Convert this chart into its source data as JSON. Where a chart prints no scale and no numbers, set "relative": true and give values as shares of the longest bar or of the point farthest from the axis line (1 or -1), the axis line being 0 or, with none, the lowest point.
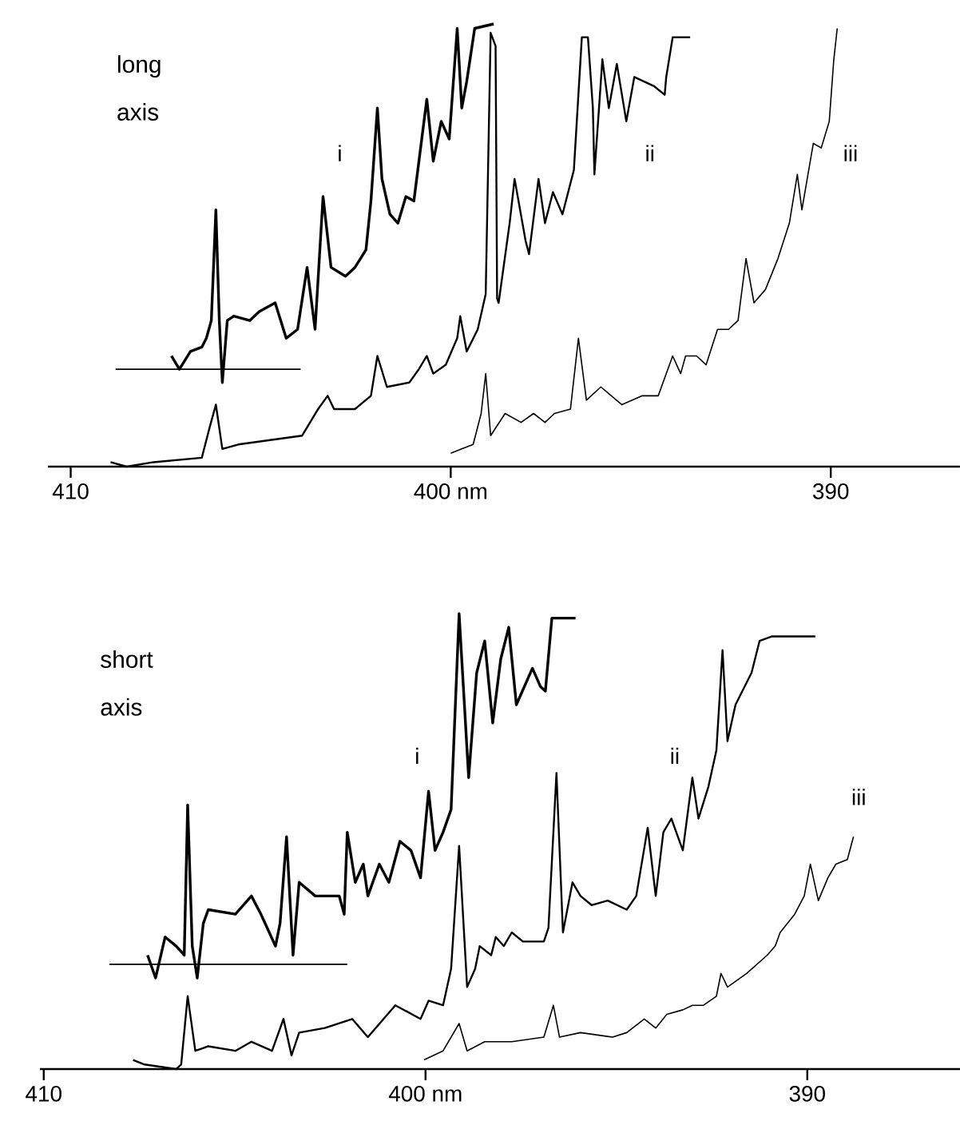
{
  "chart_data": [
    {
      "type": "line",
      "relative": true,
      "xlim": [
        410.6,
        386.6
      ],
      "xticks": [
        410,
        {
          "value": 400,
          "label": "400 nm"
        },
        390
      ],
      "annotations": [
        "long axis"
      ],
      "series": [
        {
          "name": "i",
          "color": "#000000",
          "x": [
            407.35,
            407.14,
            406.85,
            406.55,
            406.43,
            406.3,
            406.18,
            406.09,
            406.01,
            405.88,
            405.71,
            405.29,
            405.04,
            404.62,
            404.33,
            404.03,
            403.78,
            403.57,
            403.36,
            403.15,
            402.77,
            402.52,
            402.23,
            402.1,
            401.93,
            401.81,
            401.6,
            401.39,
            401.18,
            400.97,
            400.63,
            400.46,
            400.25,
            400.04,
            399.83,
            399.71,
            399.58,
            399.37,
            398.87
          ],
          "values": [
            0.25,
            0.22,
            0.26,
            0.27,
            0.29,
            0.33,
            0.58,
            0.33,
            0.19,
            0.33,
            0.34,
            0.33,
            0.35,
            0.37,
            0.29,
            0.31,
            0.45,
            0.31,
            0.61,
            0.45,
            0.43,
            0.45,
            0.49,
            0.6,
            0.81,
            0.65,
            0.57,
            0.55,
            0.61,
            0.6,
            0.83,
            0.69,
            0.78,
            0.74,
            0.99,
            0.81,
            0.87,
            0.99,
            1.0
          ]
        },
        {
          "color": "#000000",
          "x": [
            408.82,
            403.95
          ],
          "values": [
            0.22,
            0.22
          ]
        },
        {
          "name": "ii",
          "color": "#000000",
          "x": [
            408.95,
            408.53,
            407.82,
            406.55,
            406.34,
            406.18,
            406.01,
            405.59,
            404.75,
            403.91,
            403.7,
            403.49,
            403.24,
            403.07,
            402.52,
            402.1,
            401.93,
            401.68,
            401.09,
            400.84,
            400.63,
            400.46,
            400.13,
            399.83,
            399.75,
            399.58,
            399.29,
            399.08,
            398.95,
            398.82,
            398.78,
            398.74,
            398.45,
            398.32,
            398.03,
            397.94,
            397.69,
            397.52,
            397.31,
            397.06,
            396.76,
            396.55,
            396.39,
            396.26,
            396.22,
            396.01,
            395.84,
            395.63,
            395.38,
            395.17,
            394.66,
            394.37,
            394.33,
            394.16,
            393.7
          ],
          "values": [
            0.01,
            0.0,
            0.01,
            0.02,
            0.09,
            0.14,
            0.04,
            0.05,
            0.06,
            0.07,
            0.1,
            0.13,
            0.16,
            0.13,
            0.13,
            0.16,
            0.25,
            0.18,
            0.19,
            0.22,
            0.25,
            0.21,
            0.23,
            0.29,
            0.34,
            0.26,
            0.31,
            0.39,
            0.98,
            0.95,
            0.38,
            0.37,
            0.55,
            0.65,
            0.51,
            0.48,
            0.65,
            0.55,
            0.62,
            0.57,
            0.67,
            0.97,
            0.97,
            0.81,
            0.66,
            0.92,
            0.81,
            0.91,
            0.78,
            0.88,
            0.86,
            0.84,
            0.88,
            0.97,
            0.97
          ]
        },
        {
          "name": "iii",
          "color": "#000000",
          "x": [
            400.0,
            399.71,
            399.41,
            399.2,
            399.08,
            398.95,
            398.57,
            398.15,
            397.82,
            397.52,
            397.27,
            396.85,
            396.64,
            396.43,
            396.05,
            395.5,
            394.96,
            394.54,
            394.16,
            393.95,
            393.82,
            393.53,
            393.28,
            392.98,
            392.69,
            392.44,
            392.23,
            392.02,
            391.72,
            391.39,
            391.09,
            390.88,
            390.76,
            390.46,
            390.25,
            390.04,
            389.92,
            389.83
          ],
          "values": [
            0.03,
            0.04,
            0.05,
            0.12,
            0.21,
            0.07,
            0.12,
            0.1,
            0.12,
            0.1,
            0.12,
            0.13,
            0.29,
            0.15,
            0.18,
            0.14,
            0.16,
            0.16,
            0.25,
            0.21,
            0.25,
            0.25,
            0.23,
            0.31,
            0.31,
            0.33,
            0.47,
            0.37,
            0.4,
            0.47,
            0.55,
            0.66,
            0.58,
            0.73,
            0.72,
            0.78,
            0.92,
            0.99
          ]
        }
      ]
    },
    {
      "type": "line",
      "relative": true,
      "xlim": [
        410.1,
        386.0
      ],
      "xticks": [
        410,
        {
          "value": 400,
          "label": "400 nm"
        },
        390
      ],
      "annotations": [
        "short axis"
      ],
      "series": [
        {
          "name": "i",
          "color": "#000000",
          "x": [
            407.28,
            407.07,
            406.82,
            406.53,
            406.32,
            406.23,
            406.11,
            405.98,
            405.82,
            405.69,
            404.98,
            404.56,
            404.31,
            403.93,
            403.81,
            403.64,
            403.47,
            403.31,
            402.89,
            402.26,
            402.13,
            402.05,
            401.84,
            401.63,
            401.51,
            401.21,
            400.96,
            400.67,
            400.38,
            400.13,
            399.92,
            399.75,
            399.54,
            399.33,
            399.12,
            398.87,
            398.66,
            398.45,
            398.24,
            398.03,
            397.82,
            397.62,
            397.2,
            396.99,
            396.86,
            396.69,
            396.07
          ],
          "values": [
            0.25,
            0.2,
            0.29,
            0.27,
            0.25,
            0.58,
            0.27,
            0.2,
            0.32,
            0.35,
            0.34,
            0.38,
            0.34,
            0.27,
            0.32,
            0.51,
            0.25,
            0.41,
            0.38,
            0.38,
            0.34,
            0.52,
            0.41,
            0.45,
            0.38,
            0.45,
            0.41,
            0.5,
            0.48,
            0.42,
            0.61,
            0.48,
            0.52,
            0.57,
            1.0,
            0.64,
            0.87,
            0.94,
            0.76,
            0.9,
            0.97,
            0.8,
            0.88,
            0.84,
            0.83,
            0.99,
            0.99
          ]
        },
        {
          "color": "#000000",
          "x": [
            408.28,
            402.05
          ],
          "values": [
            0.23,
            0.23
          ]
        },
        {
          "name": "ii",
          "color": "#000000",
          "x": [
            407.66,
            407.36,
            406.53,
            406.4,
            406.23,
            406.03,
            405.69,
            404.98,
            404.56,
            404.02,
            403.72,
            403.51,
            403.31,
            402.64,
            401.92,
            401.51,
            400.79,
            400.13,
            399.92,
            399.54,
            399.33,
            399.12,
            398.91,
            398.7,
            398.58,
            398.28,
            398.16,
            397.95,
            397.74,
            397.45,
            396.9,
            396.78,
            396.57,
            396.4,
            396.15,
            395.94,
            395.65,
            395.23,
            394.73,
            394.48,
            394.18,
            393.97,
            393.77,
            393.56,
            393.26,
            393.01,
            392.85,
            392.59,
            392.38,
            392.22,
            392.09,
            391.88,
            391.46,
            391.25,
            390.92,
            389.79
          ],
          "values": [
            0.02,
            0.01,
            0.0,
            0.01,
            0.16,
            0.04,
            0.05,
            0.04,
            0.06,
            0.04,
            0.11,
            0.03,
            0.08,
            0.09,
            0.11,
            0.07,
            0.14,
            0.11,
            0.15,
            0.14,
            0.22,
            0.49,
            0.18,
            0.22,
            0.27,
            0.25,
            0.29,
            0.27,
            0.3,
            0.28,
            0.28,
            0.31,
            0.65,
            0.3,
            0.41,
            0.38,
            0.36,
            0.37,
            0.35,
            0.38,
            0.53,
            0.38,
            0.52,
            0.55,
            0.48,
            0.64,
            0.55,
            0.62,
            0.7,
            0.92,
            0.72,
            0.8,
            0.87,
            0.94,
            0.95,
            0.95
          ]
        },
        {
          "name": "iii",
          "color": "#000000",
          "x": [
            400.04,
            399.54,
            399.12,
            398.91,
            398.45,
            397.74,
            396.9,
            396.65,
            396.49,
            395.94,
            395.1,
            394.73,
            394.27,
            393.97,
            393.68,
            393.26,
            393.01,
            392.72,
            392.38,
            392.26,
            392.09,
            391.59,
            391.05,
            390.84,
            390.71,
            390.33,
            390.08,
            389.92,
            389.71,
            389.46,
            389.25,
            388.95,
            388.79
          ],
          "values": [
            0.02,
            0.04,
            0.1,
            0.04,
            0.06,
            0.06,
            0.07,
            0.14,
            0.07,
            0.08,
            0.07,
            0.08,
            0.11,
            0.09,
            0.12,
            0.13,
            0.14,
            0.14,
            0.16,
            0.21,
            0.18,
            0.21,
            0.25,
            0.27,
            0.3,
            0.34,
            0.38,
            0.45,
            0.37,
            0.42,
            0.45,
            0.46,
            0.51
          ]
        }
      ]
    }
  ]
}
